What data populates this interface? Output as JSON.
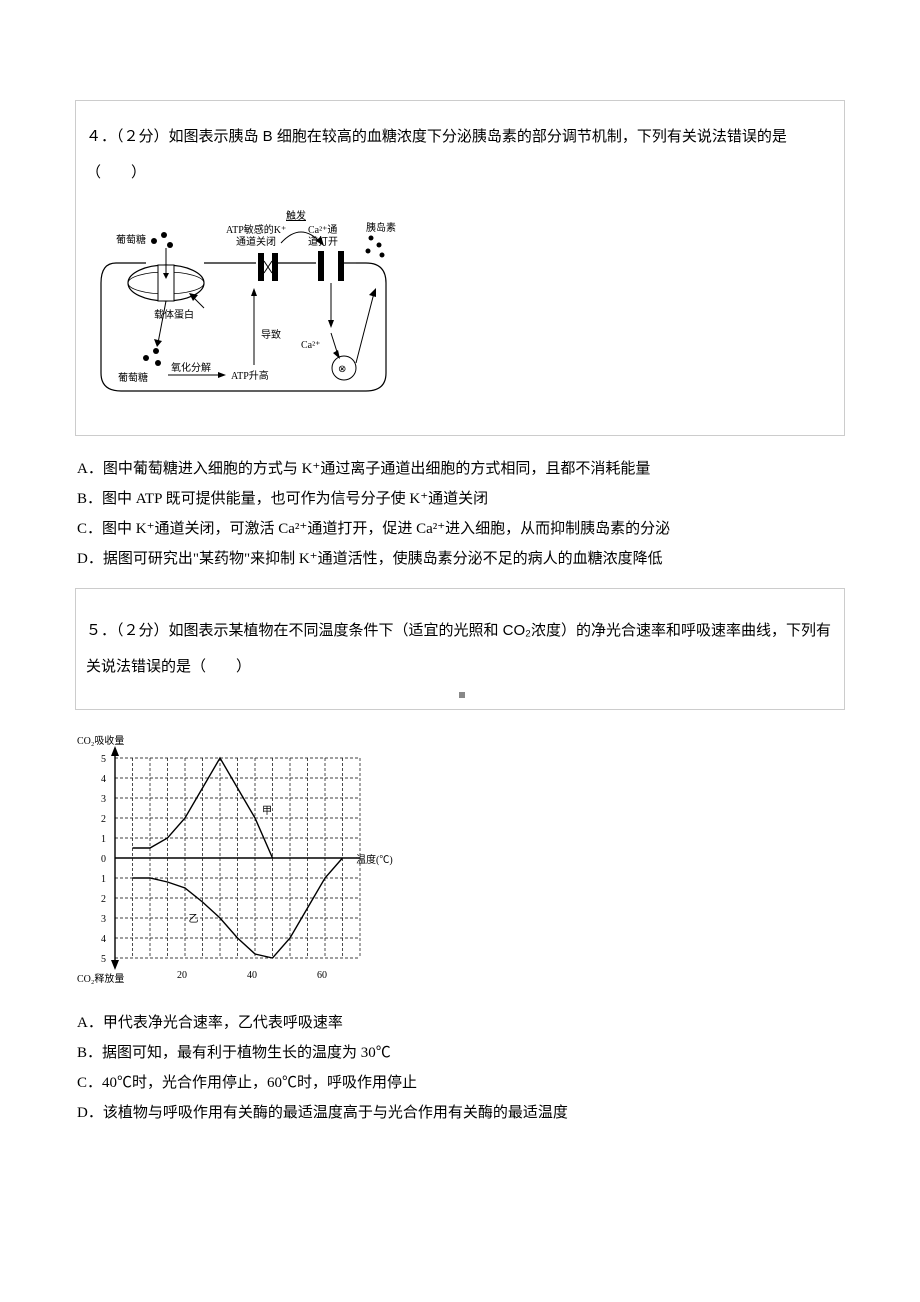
{
  "q4": {
    "stem": "４．（２分）如图表示胰岛 B 细胞在较高的血糖浓度下分泌胰岛素的部分调节机制，下列有关说法错误的是（　　）",
    "diagram": {
      "labels": {
        "glucose_out": "葡萄糖",
        "carrier": "载体蛋白",
        "glucose_in": "葡萄糖",
        "oxid": "氧化分解",
        "atp_rise": "ATP升高",
        "lead": "导致",
        "k_close": "ATP敏感的K⁺通道关闭",
        "trigger": "触发",
        "ca_open": "Ca²⁺通道打开",
        "ca_ion": "Ca²⁺",
        "insulin": "胰岛素"
      },
      "colors": {
        "stroke": "#000000",
        "fill_dot": "#000000"
      }
    },
    "options": {
      "A": "A．图中葡萄糖进入细胞的方式与 K⁺通过离子通道出细胞的方式相同，且都不消耗能量",
      "B": "B．图中 ATP 既可提供能量，也可作为信号分子使 K⁺通道关闭",
      "C": "C．图中 K⁺通道关闭，可激活 Ca²⁺通道打开，促进 Ca²⁺进入细胞，从而抑制胰岛素的分泌",
      "D": "D．据图可研究出\"某药物\"来抑制 K⁺通道活性，使胰岛素分泌不足的病人的血糖浓度降低"
    }
  },
  "q5": {
    "stem": "５．（２分）如图表示某植物在不同温度条件下（适宜的光照和 CO₂浓度）的净光合速率和呼吸速率曲线，下列有关说法错误的是（　　）",
    "chart": {
      "type": "line",
      "y_top_label": "CO₂吸收量",
      "y_bottom_label": "CO₂释放量",
      "x_label": "温度(℃)",
      "x_ticks": [
        20,
        40,
        60
      ],
      "x_min": 0,
      "x_max": 70,
      "y_ticks_pos": [
        1,
        2,
        3,
        4,
        5
      ],
      "y_ticks_neg": [
        1,
        2,
        3,
        4,
        5
      ],
      "y_min": -5,
      "y_max": 5,
      "series": {
        "jia": {
          "label": "甲",
          "points": [
            [
              5,
              0.5
            ],
            [
              10,
              0.5
            ],
            [
              15,
              1
            ],
            [
              20,
              2
            ],
            [
              25,
              3.5
            ],
            [
              30,
              5
            ],
            [
              35,
              3.5
            ],
            [
              40,
              2
            ],
            [
              45,
              0
            ]
          ]
        },
        "yi": {
          "label": "乙",
          "points": [
            [
              5,
              -1
            ],
            [
              10,
              -1
            ],
            [
              15,
              -1.2
            ],
            [
              20,
              -1.5
            ],
            [
              25,
              -2.2
            ],
            [
              30,
              -3
            ],
            [
              35,
              -4
            ],
            [
              40,
              -4.8
            ],
            [
              45,
              -5
            ],
            [
              50,
              -4
            ],
            [
              55,
              -2.5
            ],
            [
              60,
              -1
            ],
            [
              65,
              0
            ]
          ]
        }
      },
      "colors": {
        "axis": "#000000",
        "grid": "#000000",
        "line": "#000000",
        "text": "#000000"
      },
      "grid_dash": "3,2",
      "stroke_width": 1.4
    },
    "options": {
      "A": "A．甲代表净光合速率，乙代表呼吸速率",
      "B": "B．据图可知，最有利于植物生长的温度为 30℃",
      "C": "C．40℃时，光合作用停止，60℃时，呼吸作用停止",
      "D": "D．该植物与呼吸作用有关酶的最适温度高于与光合作用有关酶的最适温度"
    }
  }
}
